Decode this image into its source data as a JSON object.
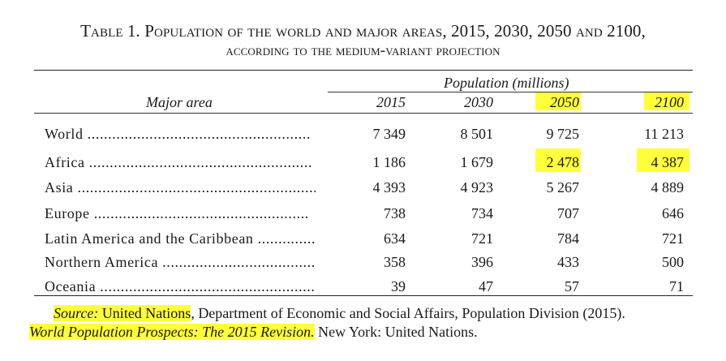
{
  "title": {
    "line1": "Table 1. Population of the world and major areas, 2015, 2030, 2050 and 2100,",
    "line2": "according to the medium-variant projection"
  },
  "header": {
    "group_label": "Population (millions)",
    "major_area_label": "Major area",
    "years": [
      "2015",
      "2030",
      "2050",
      "2100"
    ]
  },
  "rows": [
    {
      "label": "World",
      "dots": " ......................................................",
      "values": [
        "7 349",
        "8 501",
        "9 725",
        "11 213"
      ]
    },
    {
      "label": "Africa",
      "dots": " ......................................................",
      "values": [
        "1 186",
        "1 679",
        "2 478",
        "4 387"
      ]
    },
    {
      "label": "Asia",
      "dots": " ..........................................................",
      "values": [
        "4 393",
        "4 923",
        "5 267",
        "4 889"
      ]
    },
    {
      "label": "Europe",
      "dots": " ....................................................",
      "values": [
        "738",
        "734",
        "707",
        "646"
      ]
    },
    {
      "label": "Latin America and the Caribbean",
      "dots": " ...............",
      "values": [
        "634",
        "721",
        "784",
        "721"
      ]
    },
    {
      "label": "Northern America",
      "dots": " .....................................",
      "values": [
        "358",
        "396",
        "433",
        "500"
      ]
    },
    {
      "label": "Oceania",
      "dots": " .....................................................",
      "values": [
        "39",
        "47",
        "57",
        "71"
      ]
    }
  ],
  "source": {
    "prefix": "Source:",
    "org": " United Nations",
    "rest": ", Department of Economic and Social Affairs, Population Division (2015).",
    "publication": "World Population Prospects: The 2015 Revision.",
    "place": " New York: United Nations."
  },
  "colors": {
    "highlight": "#ffff3c",
    "text": "#1a1a1a"
  }
}
